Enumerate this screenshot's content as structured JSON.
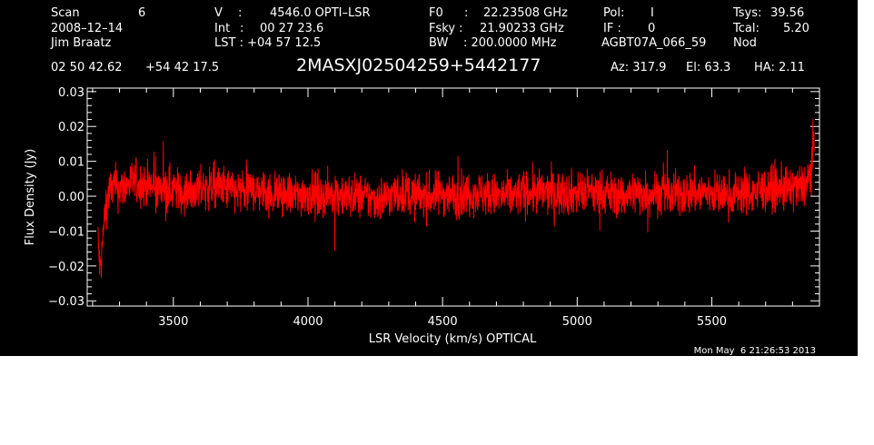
{
  "colors": {
    "background": "#000000",
    "foreground": "#ffffff",
    "trace": "#ff0000"
  },
  "header": {
    "row1": {
      "scan_label": "Scan",
      "scan_value": "6",
      "v_label": "V",
      "v_sep": ":",
      "v_value": "4546.0 OPTI–LSR",
      "f0_label": "F0",
      "f0_sep": ":",
      "f0_value": "22.23508 GHz",
      "pol_label": "Pol:",
      "pol_value": "I",
      "tsys_label": "Tsys:",
      "tsys_value": "39.56"
    },
    "row2": {
      "date": "2008–12–14",
      "int_label": "Int",
      "int_sep": ":",
      "int_value": "00 27 23.6",
      "fsky_label": "Fsky :",
      "fsky_value": "21.90233 GHz",
      "if_label": "IF :",
      "if_value": "0",
      "tcal_label": "Tcal:",
      "tcal_value": "5.20"
    },
    "row3": {
      "observer": "Jim Braatz",
      "lst_label": "LST : +04 57 12.5",
      "bw_label": "BW",
      "bw_value": ": 200.0000 MHz",
      "project": "AGBT07A_066_59",
      "mode": "Nod"
    },
    "row4": {
      "ra": "02 50 42.62",
      "dec": "+54 42 17.5",
      "source": "2MASXJ02504259+5442177",
      "az": "Az: 317.9",
      "el": "El:  63.3",
      "ha": "HA:  2.11"
    }
  },
  "timestamp": "Mon May  6 21:26:53 2013",
  "chart_data": {
    "type": "line",
    "title": "2MASXJ02504259+5442177",
    "xlabel": "LSR Velocity (km/s) OPTICAL",
    "ylabel": "Flux Density (Jy)",
    "xlim": [
      3180,
      5900
    ],
    "ylim": [
      -0.0315,
      0.031
    ],
    "x_ticks": [
      3500,
      4000,
      4500,
      5000,
      5500
    ],
    "x_tick_labels": [
      "3500",
      "4000",
      "4500",
      "5000",
      "5500"
    ],
    "y_ticks": [
      -0.03,
      -0.02,
      -0.01,
      0.0,
      0.01,
      0.02,
      0.03
    ],
    "y_tick_labels": [
      "−0.03",
      "−0.02",
      "−0.01",
      "0.00",
      "0.01",
      "0.02",
      "0.03"
    ],
    "grid": false,
    "series": [
      {
        "color": "#ff0000",
        "points": [
          [
            3220,
            -0.012
          ],
          [
            3228,
            -0.022
          ],
          [
            3235,
            -0.016
          ],
          [
            3242,
            -0.008
          ],
          [
            3250,
            -0.002
          ],
          [
            3260,
            0.001
          ],
          [
            3280,
            0.003
          ],
          [
            3300,
            0.002
          ],
          [
            3350,
            0.004
          ],
          [
            3400,
            0.003
          ],
          [
            3450,
            0.002
          ],
          [
            3500,
            0.002
          ],
          [
            3550,
            0.001
          ],
          [
            3600,
            0.002
          ],
          [
            3650,
            0.003
          ],
          [
            3700,
            0.002
          ],
          [
            3750,
            0.001
          ],
          [
            3800,
            0.002
          ],
          [
            3850,
            0.001
          ],
          [
            3900,
            0.001
          ],
          [
            3950,
            0.0
          ],
          [
            4000,
            0.001
          ],
          [
            4050,
            0.0
          ],
          [
            4100,
            0.001
          ],
          [
            4150,
            0.0
          ],
          [
            4200,
            0.0
          ],
          [
            4250,
            -0.001
          ],
          [
            4300,
            0.0
          ],
          [
            4350,
            0.001
          ],
          [
            4400,
            0.0
          ],
          [
            4450,
            0.0
          ],
          [
            4500,
            0.001
          ],
          [
            4550,
            0.0
          ],
          [
            4600,
            0.001
          ],
          [
            4650,
            0.001
          ],
          [
            4700,
            0.0
          ],
          [
            4750,
            0.0
          ],
          [
            4800,
            0.001
          ],
          [
            4850,
            0.001
          ],
          [
            4900,
            0.001
          ],
          [
            4950,
            0.001
          ],
          [
            5000,
            0.001
          ],
          [
            5050,
            0.001
          ],
          [
            5100,
            0.001
          ],
          [
            5150,
            0.0
          ],
          [
            5200,
            0.001
          ],
          [
            5250,
            0.001
          ],
          [
            5300,
            0.001
          ],
          [
            5350,
            0.0
          ],
          [
            5400,
            0.001
          ],
          [
            5450,
            0.001
          ],
          [
            5500,
            0.001
          ],
          [
            5550,
            0.0
          ],
          [
            5600,
            0.001
          ],
          [
            5650,
            0.001
          ],
          [
            5700,
            0.002
          ],
          [
            5750,
            0.002
          ],
          [
            5800,
            0.002
          ],
          [
            5840,
            0.003
          ],
          [
            5860,
            0.005
          ],
          [
            5870,
            0.009
          ],
          [
            5880,
            0.016
          ]
        ],
        "noise_rms": 0.0032
      }
    ]
  }
}
